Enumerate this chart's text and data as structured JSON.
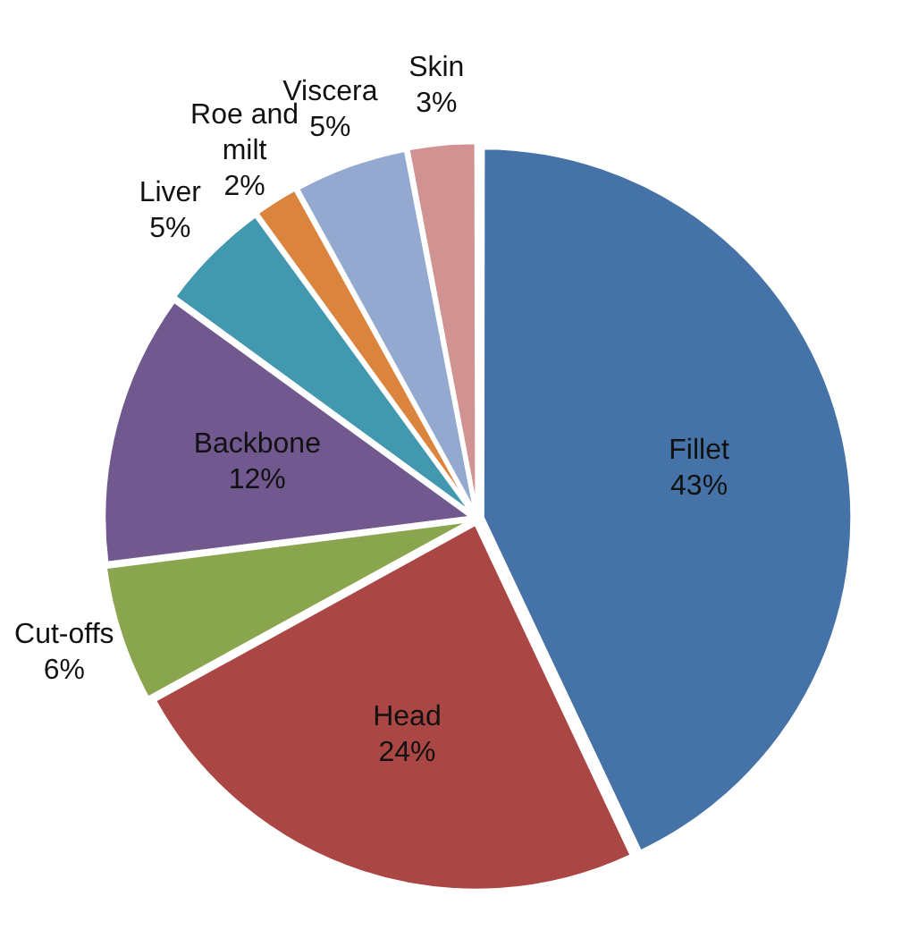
{
  "chart_data": {
    "type": "pie",
    "categories": [
      "Fillet",
      "Head",
      "Cut-offs",
      "Backbone",
      "Liver",
      "Roe and milt",
      "Viscera",
      "Skin"
    ],
    "values": [
      43,
      24,
      6,
      12,
      5,
      2,
      5,
      3
    ],
    "colors": [
      "#4572a7",
      "#aa4643",
      "#89a54e",
      "#71588f",
      "#4198af",
      "#db843d",
      "#93a9cf",
      "#d19392"
    ],
    "value_labels": [
      "43%",
      "24%",
      "6%",
      "12%",
      "5%",
      "2%",
      "5%",
      "3%"
    ],
    "legend": false
  }
}
